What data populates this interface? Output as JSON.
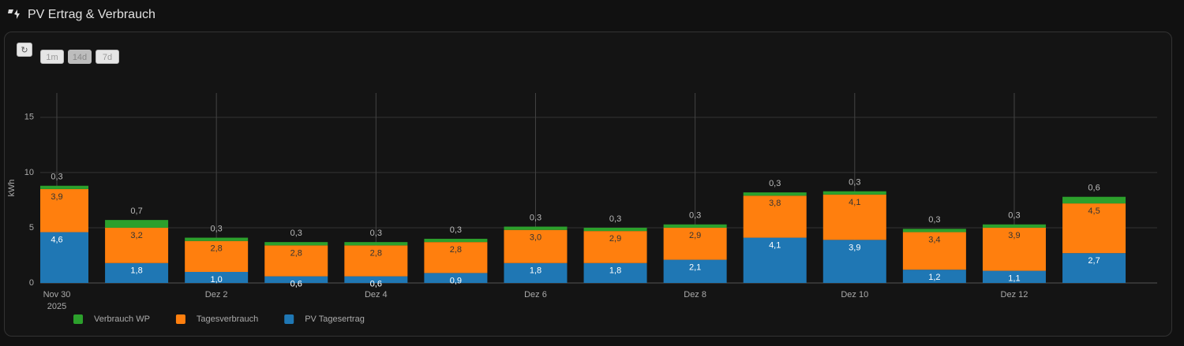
{
  "header": {
    "title": "PV Ertrag & Verbrauch"
  },
  "controls": {
    "refresh": "↻",
    "ranges": [
      "1m",
      "14d",
      "7d"
    ]
  },
  "chart_data": {
    "type": "stacked-bar",
    "categories": [
      "Nov 30",
      null,
      "Dez 2",
      null,
      "Dez 4",
      null,
      "Dez 6",
      null,
      "Dez 8",
      null,
      "Dez 10",
      null,
      "Dez 12",
      null
    ],
    "year_label": "2025",
    "ylabel": "kWh",
    "ylim": [
      0,
      17.2
    ],
    "yticks": [
      0,
      5,
      10,
      15
    ],
    "grid": true,
    "series": [
      {
        "name": "Verbrauch WP",
        "color": "#2ca02c",
        "values": [
          0.3,
          0.7,
          0.3,
          0.3,
          0.3,
          0.3,
          0.3,
          0.3,
          0.3,
          0.3,
          0.3,
          0.3,
          0.3,
          0.6
        ],
        "value_labels": [
          "0,3",
          "0,7",
          "0,3",
          "0,3",
          "0,3",
          "0,3",
          "0,3",
          "0,3",
          "0,3",
          "0,3",
          "0,3",
          "0,3",
          "0,3",
          "0,6"
        ]
      },
      {
        "name": "Tagesverbrauch",
        "color": "#ff7f0e",
        "values": [
          3.9,
          3.2,
          2.8,
          2.8,
          2.8,
          2.8,
          3.0,
          2.9,
          2.9,
          3.8,
          4.1,
          3.4,
          3.9,
          4.5
        ],
        "value_labels": [
          "3,9",
          "3,2",
          "2,8",
          "2,8",
          "2,8",
          "2,8",
          "3,0",
          "2,9",
          "2,9",
          "3,8",
          "4,1",
          "3,4",
          "3,9",
          "4,5"
        ]
      },
      {
        "name": "PV Tagesertrag",
        "color": "#1f77b4",
        "values": [
          4.6,
          1.8,
          1.0,
          0.6,
          0.6,
          0.9,
          1.8,
          1.8,
          2.1,
          4.1,
          3.9,
          1.2,
          1.1,
          2.7
        ],
        "value_labels": [
          "4,6",
          "1,8",
          "1,0",
          "0,6",
          "0,6",
          "0,9",
          "1,8",
          "1,8",
          "2,1",
          "4,1",
          "3,9",
          "1,2",
          "1,1",
          "2,7"
        ]
      }
    ]
  }
}
